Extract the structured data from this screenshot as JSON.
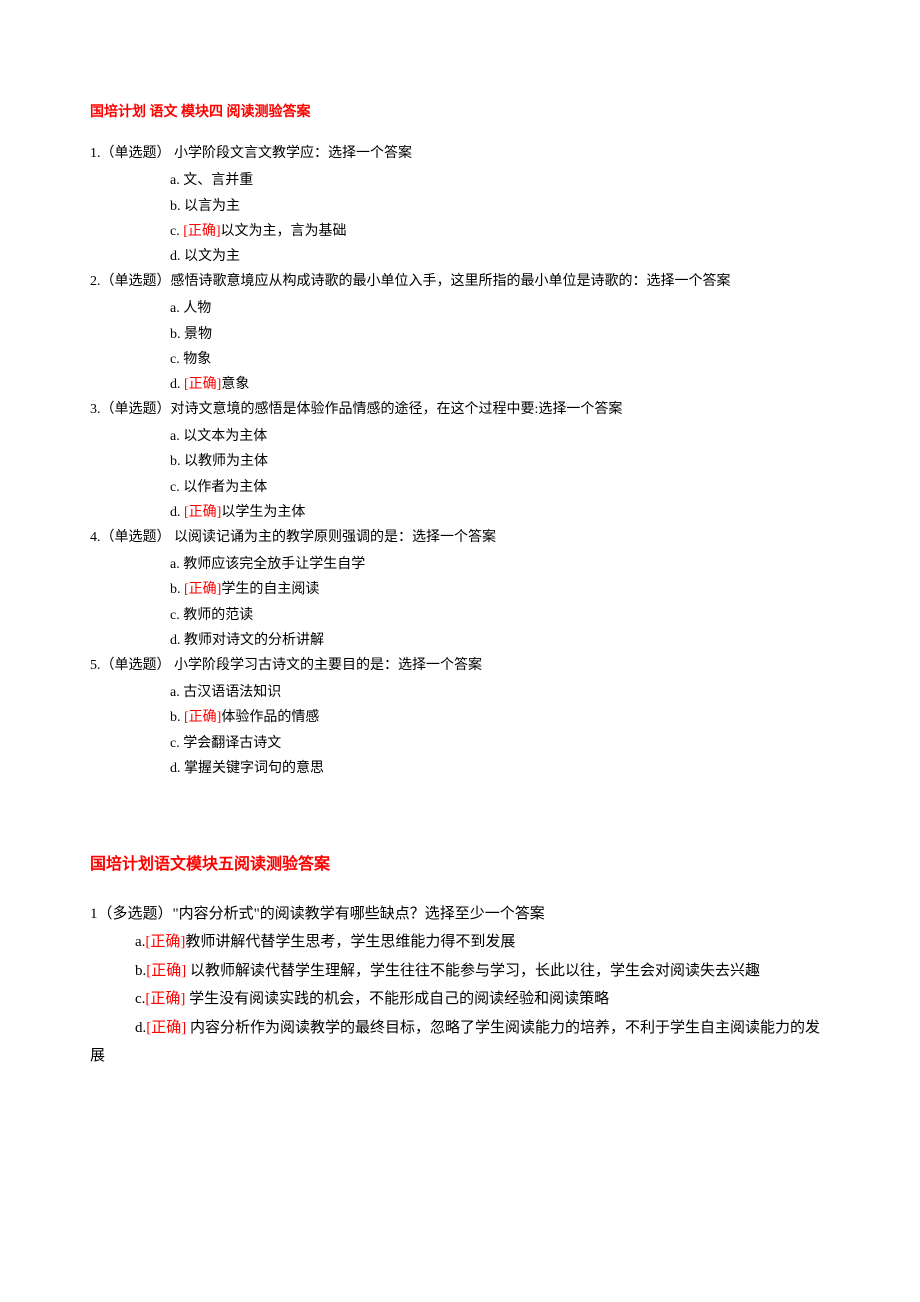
{
  "colors": {
    "text": "#000000",
    "accent": "#ff0000",
    "background": "#ffffff"
  },
  "section1": {
    "title": "国培计划 语文 模块四 阅读测验答案",
    "questions": [
      {
        "stem": "1.（单选题） 小学阶段文言文教学应：选择一个答案",
        "options": [
          {
            "letter": "a.",
            "correct": false,
            "text": "文、言并重"
          },
          {
            "letter": "b.",
            "correct": false,
            "text": "以言为主"
          },
          {
            "letter": "c.",
            "correct": true,
            "text": "以文为主，言为基础"
          },
          {
            "letter": "d.",
            "correct": false,
            "text": "以文为主"
          }
        ]
      },
      {
        "stem": "2.（单选题）感悟诗歌意境应从构成诗歌的最小单位入手，这里所指的最小单位是诗歌的：选择一个答案",
        "options": [
          {
            "letter": "a.",
            "correct": false,
            "text": "人物"
          },
          {
            "letter": "b.",
            "correct": false,
            "text": "景物"
          },
          {
            "letter": "c.",
            "correct": false,
            "text": "物象"
          },
          {
            "letter": "d.",
            "correct": true,
            "text": "意象"
          }
        ]
      },
      {
        "stem": "3.（单选题）对诗文意境的感悟是体验作品情感的途径，在这个过程中要:选择一个答案",
        "options": [
          {
            "letter": "a.",
            "correct": false,
            "text": "以文本为主体"
          },
          {
            "letter": "b.",
            "correct": false,
            "text": "以教师为主体"
          },
          {
            "letter": "c.",
            "correct": false,
            "text": "以作者为主体"
          },
          {
            "letter": "d.",
            "correct": true,
            "text": "以学生为主体"
          }
        ]
      },
      {
        "stem": "4.（单选题） 以阅读记诵为主的教学原则强调的是：选择一个答案",
        "options": [
          {
            "letter": "a.",
            "correct": false,
            "text": "教师应该完全放手让学生自学"
          },
          {
            "letter": "b.",
            "correct": true,
            "text": "学生的自主阅读"
          },
          {
            "letter": "c.",
            "correct": false,
            "text": "教师的范读"
          },
          {
            "letter": "d.",
            "correct": false,
            "text": "教师对诗文的分析讲解"
          }
        ]
      },
      {
        "stem": "5.（单选题） 小学阶段学习古诗文的主要目的是：选择一个答案",
        "options": [
          {
            "letter": "a.",
            "correct": false,
            "text": "古汉语语法知识"
          },
          {
            "letter": "b.",
            "correct": true,
            "text": "体验作品的情感"
          },
          {
            "letter": "c.",
            "correct": false,
            "text": "学会翻译古诗文"
          },
          {
            "letter": " d.",
            "correct": false,
            "text": "掌握关键字词句的意思"
          }
        ]
      }
    ]
  },
  "section2": {
    "title": "国培计划语文模块五阅读测验答案",
    "question": {
      "stem": "1（多选题）\"内容分析式\"的阅读教学有哪些缺点？选择至少一个答案",
      "options": [
        {
          "letter": "a.",
          "correct": true,
          "text": "教师讲解代替学生思考，学生思维能力得不到发展"
        },
        {
          "letter": "b.",
          "correct": true,
          "text": " 以教师解读代替学生理解，学生往往不能参与学习，长此以往，学生会对阅读失去兴趣"
        },
        {
          "letter": "c.",
          "correct": true,
          "text": " 学生没有阅读实践的机会，不能形成自己的阅读经验和阅读策略"
        },
        {
          "letter": "d.",
          "correct": true,
          "text": " 内容分析作为阅读教学的最终目标，忽略了学生阅读能力的培养，不利于学生自主阅读能力的发展"
        }
      ]
    }
  },
  "correct_label": "[正确]"
}
